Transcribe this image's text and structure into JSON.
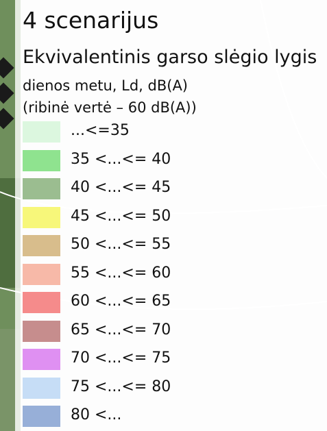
{
  "title": "4 scenarijus",
  "subtitle": [
    "Ekvivalentinis garso slėgio lygis",
    "dienos metu, Ld, dB(A)",
    "(ribinė vertė – 60 dB(A))"
  ],
  "legend": [
    {
      "label": "...<=35",
      "color": "#dcf7df"
    },
    {
      "label": "35 <...<= 40",
      "color": "#8fe38f"
    },
    {
      "label": "40 <...<= 45",
      "color": "#9bbd90"
    },
    {
      "label": "45 <...<= 50",
      "color": "#f7f77a"
    },
    {
      "label": "50 <...<= 55",
      "color": "#d8bd8c"
    },
    {
      "label": "55 <...<= 60",
      "color": "#f7b9a8"
    },
    {
      "label": "60 <...<= 65",
      "color": "#f58b8b"
    },
    {
      "label": "65 <...<= 70",
      "color": "#c68d8d"
    },
    {
      "label": "70 <...<= 75",
      "color": "#df90f2"
    },
    {
      "label": "75 <...<= 80",
      "color": "#c6ddf6"
    },
    {
      "label": "80 <...",
      "color": "#97afd8"
    }
  ]
}
